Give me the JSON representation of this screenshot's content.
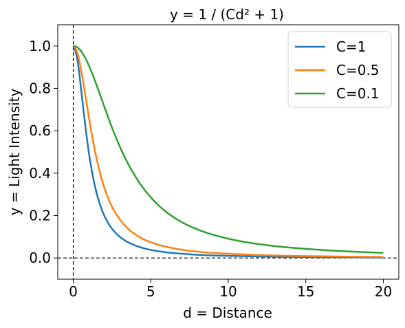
{
  "chart_data": {
    "type": "line",
    "title": "y = 1 / (Cd² + 1)",
    "xlabel": "d = Distance",
    "ylabel": "y = Light Intensity",
    "xlim": [
      -1,
      21
    ],
    "ylim": [
      -0.1,
      1.1
    ],
    "xticks": [
      0,
      5,
      10,
      15,
      20
    ],
    "xtick_labels": [
      "0",
      "5",
      "10",
      "15",
      "20"
    ],
    "yticks": [
      0.0,
      0.2,
      0.4,
      0.6,
      0.8,
      1.0
    ],
    "ytick_labels": [
      "0.0",
      "0.2",
      "0.4",
      "0.6",
      "0.8",
      "1.0"
    ],
    "reference_lines": [
      {
        "orientation": "vertical",
        "value": 0,
        "style": "dashed"
      },
      {
        "orientation": "horizontal",
        "value": 0,
        "style": "dashed"
      }
    ],
    "legend": {
      "position": "top-right"
    },
    "grid": false,
    "x": [
      0,
      0.25,
      0.5,
      0.75,
      1,
      1.5,
      2,
      2.5,
      3,
      4,
      5,
      6,
      7,
      8,
      10,
      12,
      14,
      16,
      18,
      20
    ],
    "series": [
      {
        "name": "C=1",
        "color": "#1f77b4",
        "values": [
          1.0,
          0.941,
          0.8,
          0.64,
          0.5,
          0.308,
          0.2,
          0.138,
          0.1,
          0.059,
          0.038,
          0.027,
          0.02,
          0.015,
          0.01,
          0.007,
          0.005,
          0.004,
          0.003,
          0.002
        ]
      },
      {
        "name": "C=0.5",
        "color": "#ff7f0e",
        "values": [
          1.0,
          0.97,
          0.889,
          0.78,
          0.667,
          0.471,
          0.333,
          0.242,
          0.182,
          0.111,
          0.074,
          0.053,
          0.039,
          0.03,
          0.02,
          0.014,
          0.01,
          0.008,
          0.006,
          0.005
        ]
      },
      {
        "name": "C=0.1",
        "color": "#2ca02c",
        "values": [
          1.0,
          0.994,
          0.976,
          0.947,
          0.909,
          0.816,
          0.714,
          0.615,
          0.526,
          0.385,
          0.286,
          0.217,
          0.169,
          0.135,
          0.091,
          0.065,
          0.049,
          0.038,
          0.03,
          0.024
        ]
      }
    ]
  }
}
